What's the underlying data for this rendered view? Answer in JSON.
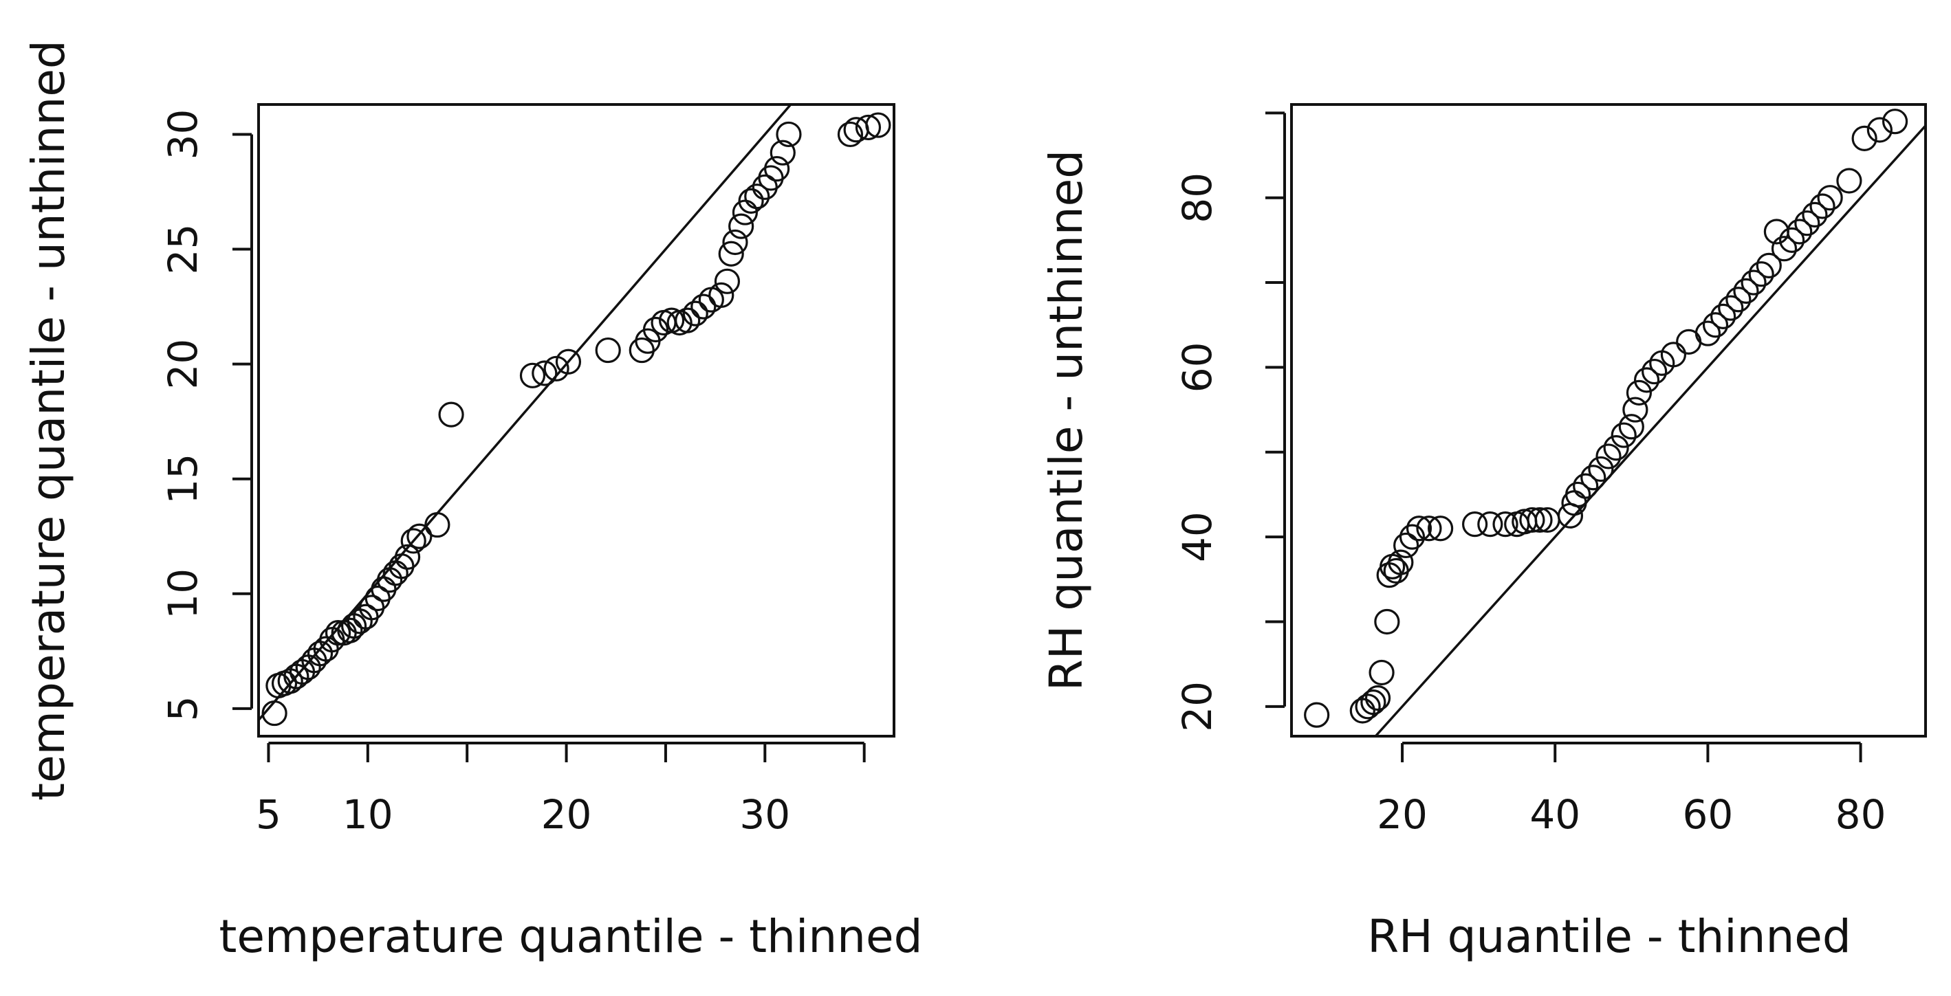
{
  "chart_data": [
    {
      "type": "scatter",
      "title": "",
      "xlabel": "temperature quantile - thinned",
      "ylabel": "temperature quantile - unthinned",
      "xlim": [
        4.5,
        36.5
      ],
      "ylim": [
        3.8,
        31.3
      ],
      "xticks": [
        5,
        10,
        20,
        30
      ],
      "xtick_minor": [
        15,
        25,
        35
      ],
      "yticks": [
        5,
        10,
        15,
        20,
        25,
        30
      ],
      "reference_line": "y = x",
      "grid": false,
      "series": [
        {
          "x": [
            5.3,
            5.5,
            5.8,
            6.1,
            6.4,
            6.7,
            7.0,
            7.3,
            7.6,
            7.9,
            8.2,
            8.5,
            8.8,
            9.1,
            9.3,
            9.6,
            9.9,
            10.2,
            10.5,
            10.8,
            11.1,
            11.4,
            11.7,
            12.0,
            12.3,
            12.6,
            13.5,
            14.2,
            18.3,
            18.9,
            19.5,
            20.1,
            22.1,
            23.8,
            24.1,
            24.5,
            24.9,
            25.3,
            25.7,
            26.1,
            26.5,
            26.9,
            27.3,
            27.8,
            28.1,
            28.3,
            28.5,
            28.8,
            29.0,
            29.3,
            29.6,
            30.0,
            30.3,
            30.6,
            30.9,
            31.2,
            34.3,
            34.6,
            35.2,
            35.7
          ],
          "y": [
            4.8,
            6.0,
            6.1,
            6.2,
            6.4,
            6.6,
            6.8,
            7.1,
            7.4,
            7.6,
            8.0,
            8.3,
            8.3,
            8.4,
            8.6,
            8.8,
            9.0,
            9.4,
            9.8,
            10.2,
            10.6,
            10.9,
            11.2,
            11.6,
            12.3,
            12.5,
            13.0,
            17.8,
            19.5,
            19.6,
            19.8,
            20.1,
            20.6,
            20.6,
            21.0,
            21.5,
            21.8,
            21.9,
            21.8,
            21.9,
            22.2,
            22.5,
            22.8,
            23.0,
            23.6,
            24.8,
            25.3,
            26.0,
            26.6,
            27.1,
            27.3,
            27.7,
            28.1,
            28.5,
            29.2,
            30.0,
            30.0,
            30.2,
            30.3,
            30.4
          ]
        }
      ]
    },
    {
      "type": "scatter",
      "title": "",
      "xlabel": "RH quantile - thinned",
      "ylabel": "RH quantile - unthinned",
      "xlim": [
        5.5,
        88.5
      ],
      "ylim": [
        16.5,
        91
      ],
      "xticks": [
        20,
        40,
        60,
        80
      ],
      "yticks": [
        20,
        40,
        60,
        80
      ],
      "ytick_minor": [
        30,
        50,
        70,
        90
      ],
      "reference_line": "y = x",
      "grid": false,
      "series": [
        {
          "x": [
            8.8,
            14.8,
            15.5,
            16.2,
            16.8,
            17.3,
            18.0,
            18.3,
            18.7,
            19.2,
            19.8,
            20.5,
            21.3,
            22.2,
            23.5,
            25.0,
            29.5,
            31.5,
            33.5,
            35.0,
            36.0,
            37.0,
            38.0,
            39.0,
            42.0,
            42.5,
            43.0,
            44.0,
            45.0,
            46.0,
            47.0,
            48.0,
            49.0,
            50.0,
            50.5,
            51.0,
            52.0,
            53.0,
            54.0,
            55.5,
            57.5,
            60.0,
            61.0,
            62.0,
            63.0,
            64.0,
            65.0,
            66.0,
            67.0,
            68.0,
            69.0,
            70.0,
            71.0,
            72.0,
            73.0,
            74.0,
            75.0,
            76.0,
            78.5,
            80.5,
            82.5,
            84.5
          ],
          "y": [
            19.0,
            19.5,
            20.0,
            20.5,
            21.0,
            24.0,
            30.0,
            35.5,
            36.5,
            36.0,
            37.0,
            39.0,
            40.0,
            41.0,
            41.0,
            41.0,
            41.5,
            41.5,
            41.5,
            41.5,
            41.8,
            42.0,
            42.0,
            42.0,
            42.5,
            44.0,
            45.0,
            46.0,
            47.0,
            48.0,
            49.5,
            50.5,
            52.0,
            53.0,
            55.0,
            57.0,
            58.5,
            59.5,
            60.5,
            61.5,
            63.0,
            64.0,
            65.0,
            66.0,
            67.0,
            68.0,
            69.0,
            70.0,
            71.0,
            72.0,
            76.0,
            74.0,
            75.0,
            76.0,
            77.0,
            78.0,
            79.0,
            80.0,
            82.0,
            87.0,
            88.0,
            89.0
          ]
        }
      ]
    }
  ]
}
